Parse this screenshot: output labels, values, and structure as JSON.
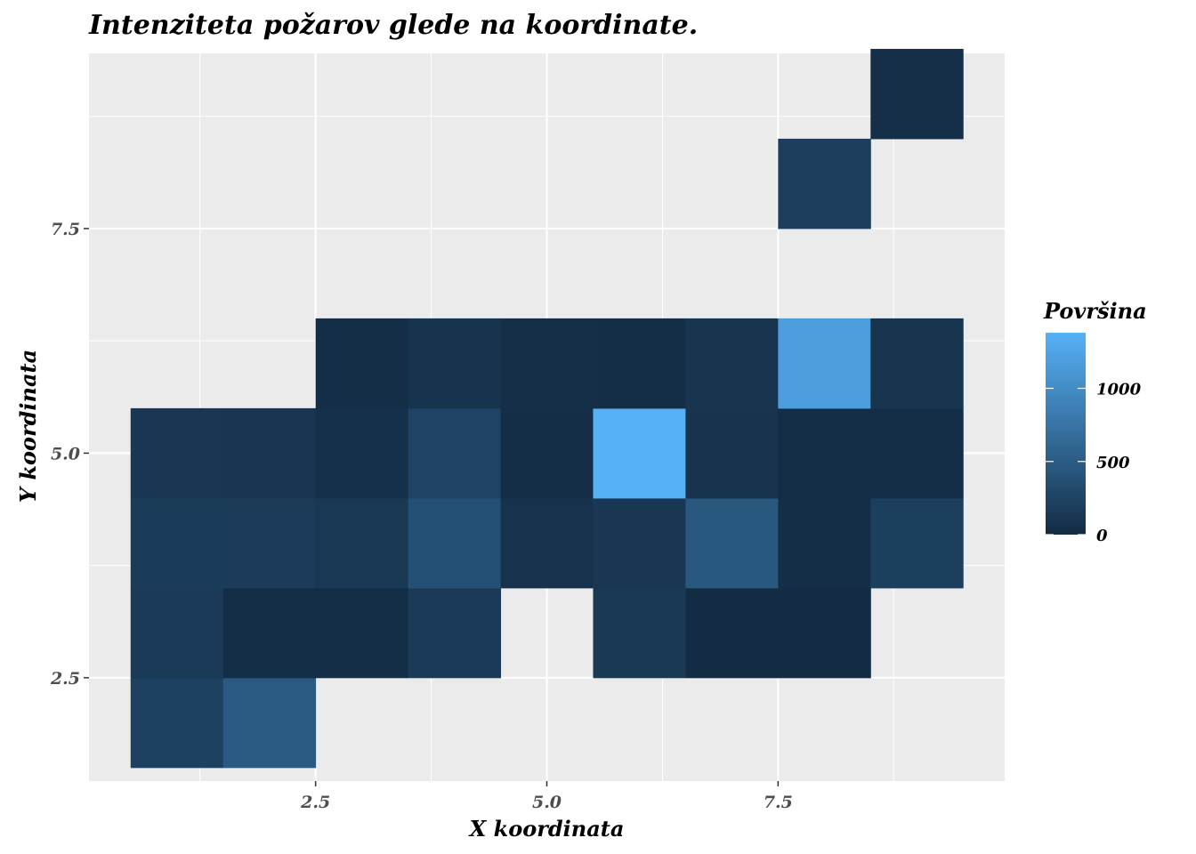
{
  "chart_data": {
    "type": "heatmap",
    "title": "Intenziteta požarov glede na koordinate.",
    "xlabel": "X koordinata",
    "ylabel": "Y koordinata",
    "xlim": [
      0.05,
      9.95
    ],
    "ylim": [
      1.35,
      9.45
    ],
    "x_ticks": [
      2.5,
      5.0,
      7.5
    ],
    "x_tick_labels": [
      "2.5",
      "5.0",
      "7.5"
    ],
    "y_ticks": [
      2.5,
      5.0,
      7.5
    ],
    "y_tick_labels": [
      "2.5",
      "5.0",
      "7.5"
    ],
    "bin_width": 1,
    "grid": true,
    "legend": {
      "title": "Površina",
      "placement": "right",
      "breaks": [
        0,
        500,
        1000
      ],
      "labels": [
        "0",
        "500",
        "1000"
      ],
      "min": 0,
      "max": 1380,
      "color_low": "#132B43",
      "color_high": "#56B1F7"
    },
    "cells": [
      {
        "x": 1,
        "y": 2,
        "value": 230
      },
      {
        "x": 2,
        "y": 2,
        "value": 480
      },
      {
        "x": 1,
        "y": 3,
        "value": 150
      },
      {
        "x": 2,
        "y": 3,
        "value": 20
      },
      {
        "x": 3,
        "y": 3,
        "value": 20
      },
      {
        "x": 4,
        "y": 3,
        "value": 150
      },
      {
        "x": 6,
        "y": 3,
        "value": 140
      },
      {
        "x": 7,
        "y": 3,
        "value": 10
      },
      {
        "x": 8,
        "y": 3,
        "value": 10
      },
      {
        "x": 1,
        "y": 4,
        "value": 170
      },
      {
        "x": 2,
        "y": 4,
        "value": 160
      },
      {
        "x": 3,
        "y": 4,
        "value": 130
      },
      {
        "x": 4,
        "y": 4,
        "value": 380
      },
      {
        "x": 5,
        "y": 4,
        "value": 70
      },
      {
        "x": 6,
        "y": 4,
        "value": 120
      },
      {
        "x": 7,
        "y": 4,
        "value": 460
      },
      {
        "x": 8,
        "y": 4,
        "value": 30
      },
      {
        "x": 9,
        "y": 4,
        "value": 210
      },
      {
        "x": 1,
        "y": 5,
        "value": 120
      },
      {
        "x": 2,
        "y": 5,
        "value": 110
      },
      {
        "x": 3,
        "y": 5,
        "value": 50
      },
      {
        "x": 4,
        "y": 5,
        "value": 250
      },
      {
        "x": 5,
        "y": 5,
        "value": 30
      },
      {
        "x": 6,
        "y": 5,
        "value": 1380
      },
      {
        "x": 7,
        "y": 5,
        "value": 80
      },
      {
        "x": 8,
        "y": 5,
        "value": 20
      },
      {
        "x": 9,
        "y": 5,
        "value": 20
      },
      {
        "x": 3,
        "y": 6,
        "value": 30
      },
      {
        "x": 4,
        "y": 6,
        "value": 90
      },
      {
        "x": 5,
        "y": 6,
        "value": 40
      },
      {
        "x": 6,
        "y": 6,
        "value": 30
      },
      {
        "x": 7,
        "y": 6,
        "value": 100
      },
      {
        "x": 8,
        "y": 6,
        "value": 1170
      },
      {
        "x": 9,
        "y": 6,
        "value": 100
      },
      {
        "x": 8,
        "y": 8,
        "value": 190
      },
      {
        "x": 9,
        "y": 9,
        "value": 40
      }
    ]
  }
}
